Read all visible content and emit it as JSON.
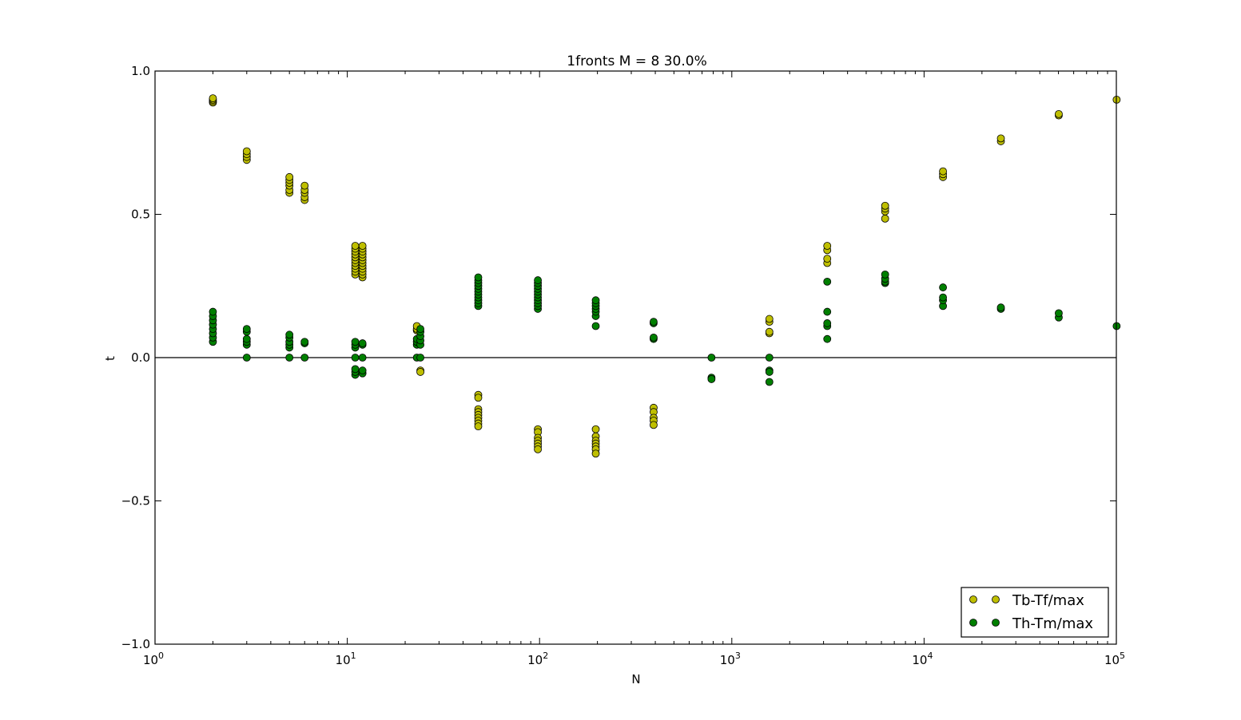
{
  "chart_data": {
    "type": "scatter",
    "title": "1fronts M = 8 30.0%",
    "xlabel": "N",
    "ylabel": "t",
    "xscale": "log",
    "xlim": [
      1,
      100000
    ],
    "ylim": [
      -1.0,
      1.0
    ],
    "grid": false,
    "legend_position": "lower-right",
    "x_ticks": [
      {
        "value": 1,
        "base": "10",
        "exp": "0"
      },
      {
        "value": 10,
        "base": "10",
        "exp": "1"
      },
      {
        "value": 100,
        "base": "10",
        "exp": "2"
      },
      {
        "value": 1000,
        "base": "10",
        "exp": "3"
      },
      {
        "value": 10000,
        "base": "10",
        "exp": "4"
      },
      {
        "value": 100000,
        "base": "10",
        "exp": "5"
      }
    ],
    "y_ticks": [
      {
        "value": 1.0,
        "label": "1.0"
      },
      {
        "value": 0.5,
        "label": "0.5"
      },
      {
        "value": 0.0,
        "label": "0.0"
      },
      {
        "value": -0.5,
        "label": "−0.5"
      },
      {
        "value": -1.0,
        "label": "−1.0"
      }
    ],
    "series": [
      {
        "name": "Tb-Tf/max",
        "color": "#bfbf00",
        "points": [
          [
            2,
            0.89
          ],
          [
            2,
            0.895
          ],
          [
            2,
            0.9
          ],
          [
            2,
            0.905
          ],
          [
            3,
            0.69
          ],
          [
            3,
            0.7
          ],
          [
            3,
            0.71
          ],
          [
            3,
            0.72
          ],
          [
            5,
            0.575
          ],
          [
            5,
            0.585
          ],
          [
            5,
            0.6
          ],
          [
            5,
            0.61
          ],
          [
            5,
            0.62
          ],
          [
            5,
            0.63
          ],
          [
            6,
            0.55
          ],
          [
            6,
            0.56
          ],
          [
            6,
            0.575
          ],
          [
            6,
            0.585
          ],
          [
            6,
            0.6
          ],
          [
            11,
            0.29
          ],
          [
            11,
            0.3
          ],
          [
            11,
            0.31
          ],
          [
            11,
            0.32
          ],
          [
            11,
            0.33
          ],
          [
            11,
            0.34
          ],
          [
            11,
            0.35
          ],
          [
            11,
            0.36
          ],
          [
            11,
            0.37
          ],
          [
            11,
            0.38
          ],
          [
            11,
            0.39
          ],
          [
            12,
            0.28
          ],
          [
            12,
            0.29
          ],
          [
            12,
            0.3
          ],
          [
            12,
            0.31
          ],
          [
            12,
            0.32
          ],
          [
            12,
            0.33
          ],
          [
            12,
            0.34
          ],
          [
            12,
            0.35
          ],
          [
            12,
            0.36
          ],
          [
            12,
            0.37
          ],
          [
            12,
            0.38
          ],
          [
            12,
            0.39
          ],
          [
            23,
            0.095
          ],
          [
            23,
            0.1
          ],
          [
            23,
            0.11
          ],
          [
            24,
            -0.045
          ],
          [
            24,
            -0.05
          ],
          [
            48,
            -0.13
          ],
          [
            48,
            -0.14
          ],
          [
            48,
            -0.18
          ],
          [
            48,
            -0.19
          ],
          [
            48,
            -0.2
          ],
          [
            48,
            -0.21
          ],
          [
            48,
            -0.22
          ],
          [
            48,
            -0.23
          ],
          [
            48,
            -0.24
          ],
          [
            98,
            -0.25
          ],
          [
            98,
            -0.26
          ],
          [
            98,
            -0.28
          ],
          [
            98,
            -0.29
          ],
          [
            98,
            -0.3
          ],
          [
            98,
            -0.31
          ],
          [
            98,
            -0.32
          ],
          [
            196,
            -0.25
          ],
          [
            196,
            -0.275
          ],
          [
            196,
            -0.29
          ],
          [
            196,
            -0.3
          ],
          [
            196,
            -0.31
          ],
          [
            196,
            -0.32
          ],
          [
            196,
            -0.335
          ],
          [
            392,
            -0.175
          ],
          [
            392,
            -0.19
          ],
          [
            392,
            -0.21
          ],
          [
            392,
            -0.22
          ],
          [
            392,
            -0.235
          ],
          [
            1568,
            0.085
          ],
          [
            1568,
            0.09
          ],
          [
            1568,
            0.125
          ],
          [
            1568,
            0.135
          ],
          [
            3136,
            0.33
          ],
          [
            3136,
            0.345
          ],
          [
            3136,
            0.375
          ],
          [
            3136,
            0.39
          ],
          [
            6272,
            0.485
          ],
          [
            6272,
            0.51
          ],
          [
            6272,
            0.52
          ],
          [
            6272,
            0.53
          ],
          [
            12544,
            0.63
          ],
          [
            12544,
            0.64
          ],
          [
            12544,
            0.65
          ],
          [
            25088,
            0.755
          ],
          [
            25088,
            0.765
          ],
          [
            50176,
            0.845
          ],
          [
            50176,
            0.85
          ],
          [
            100352,
            0.9
          ]
        ]
      },
      {
        "name": "Th-Tm/max",
        "color": "#007f00",
        "points": [
          [
            2,
            0.055
          ],
          [
            2,
            0.07
          ],
          [
            2,
            0.085
          ],
          [
            2,
            0.1
          ],
          [
            2,
            0.115
          ],
          [
            2,
            0.13
          ],
          [
            2,
            0.145
          ],
          [
            2,
            0.16
          ],
          [
            3,
            0.0
          ],
          [
            3,
            0.045
          ],
          [
            3,
            0.055
          ],
          [
            3,
            0.065
          ],
          [
            3,
            0.09
          ],
          [
            3,
            0.1
          ],
          [
            5,
            0.0
          ],
          [
            5,
            0.035
          ],
          [
            5,
            0.045
          ],
          [
            5,
            0.055
          ],
          [
            5,
            0.07
          ],
          [
            5,
            0.08
          ],
          [
            6,
            0.0
          ],
          [
            6,
            0.05
          ],
          [
            6,
            0.055
          ],
          [
            11,
            -0.06
          ],
          [
            11,
            -0.05
          ],
          [
            11,
            -0.04
          ],
          [
            11,
            0.0
          ],
          [
            11,
            0.035
          ],
          [
            11,
            0.045
          ],
          [
            11,
            0.055
          ],
          [
            12,
            -0.055
          ],
          [
            12,
            -0.045
          ],
          [
            12,
            0.0
          ],
          [
            12,
            0.045
          ],
          [
            12,
            0.05
          ],
          [
            23,
            0.0
          ],
          [
            23,
            0.045
          ],
          [
            23,
            0.055
          ],
          [
            23,
            0.065
          ],
          [
            24,
            0.0
          ],
          [
            24,
            0.045
          ],
          [
            24,
            0.06
          ],
          [
            24,
            0.075
          ],
          [
            24,
            0.09
          ],
          [
            24,
            0.1
          ],
          [
            48,
            0.18
          ],
          [
            48,
            0.19
          ],
          [
            48,
            0.2
          ],
          [
            48,
            0.21
          ],
          [
            48,
            0.22
          ],
          [
            48,
            0.23
          ],
          [
            48,
            0.24
          ],
          [
            48,
            0.25
          ],
          [
            48,
            0.26
          ],
          [
            48,
            0.27
          ],
          [
            48,
            0.28
          ],
          [
            98,
            0.17
          ],
          [
            98,
            0.18
          ],
          [
            98,
            0.19
          ],
          [
            98,
            0.2
          ],
          [
            98,
            0.21
          ],
          [
            98,
            0.22
          ],
          [
            98,
            0.23
          ],
          [
            98,
            0.24
          ],
          [
            98,
            0.25
          ],
          [
            98,
            0.26
          ],
          [
            98,
            0.27
          ],
          [
            196,
            0.11
          ],
          [
            196,
            0.145
          ],
          [
            196,
            0.16
          ],
          [
            196,
            0.17
          ],
          [
            196,
            0.18
          ],
          [
            196,
            0.19
          ],
          [
            196,
            0.2
          ],
          [
            392,
            0.065
          ],
          [
            392,
            0.07
          ],
          [
            392,
            0.12
          ],
          [
            392,
            0.125
          ],
          [
            784,
            0.0
          ],
          [
            784,
            -0.07
          ],
          [
            784,
            -0.075
          ],
          [
            1568,
            0.0
          ],
          [
            1568,
            -0.045
          ],
          [
            1568,
            -0.05
          ],
          [
            1568,
            -0.085
          ],
          [
            3136,
            0.065
          ],
          [
            3136,
            0.11
          ],
          [
            3136,
            0.12
          ],
          [
            3136,
            0.16
          ],
          [
            3136,
            0.265
          ],
          [
            6272,
            0.26
          ],
          [
            6272,
            0.265
          ],
          [
            6272,
            0.275
          ],
          [
            6272,
            0.29
          ],
          [
            12544,
            0.18
          ],
          [
            12544,
            0.2
          ],
          [
            12544,
            0.21
          ],
          [
            12544,
            0.245
          ],
          [
            25088,
            0.17
          ],
          [
            25088,
            0.175
          ],
          [
            50176,
            0.14
          ],
          [
            50176,
            0.155
          ],
          [
            100352,
            0.11
          ]
        ]
      }
    ]
  }
}
